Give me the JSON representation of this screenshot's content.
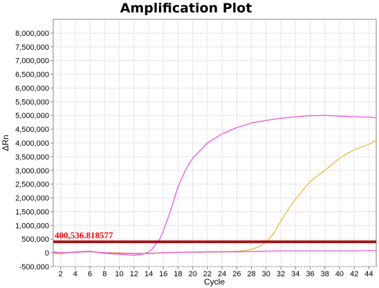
{
  "chart_data": {
    "type": "line",
    "title": "Amplification Plot",
    "xlabel": "Cycle",
    "ylabel": "ΔRn",
    "xlim": [
      1,
      45
    ],
    "ylim": [
      -500000,
      8500000
    ],
    "grid": true,
    "x_ticks": [
      2,
      4,
      6,
      8,
      10,
      12,
      14,
      16,
      18,
      20,
      22,
      24,
      26,
      28,
      30,
      32,
      34,
      36,
      38,
      40,
      42,
      44
    ],
    "y_ticks": [
      -500000,
      0,
      500000,
      1000000,
      1500000,
      2000000,
      2500000,
      3000000,
      3500000,
      4000000,
      4500000,
      5000000,
      5500000,
      6000000,
      6500000,
      7000000,
      7500000,
      8000000
    ],
    "y_tick_labels": [
      "-500,000",
      "0",
      "500,000",
      "1,000,000",
      "1,500,000",
      "2,000,000",
      "2,500,000",
      "3,000,000",
      "3,500,000",
      "4,000,000",
      "4,500,000",
      "5,000,000",
      "5,500,000",
      "6,000,000",
      "6,500,000",
      "7,000,000",
      "7,500,000",
      "8,000,000"
    ],
    "threshold": {
      "value": 400536.818577,
      "label": "400,536.818577",
      "color": "#a01818",
      "label_color": "#ff0000"
    },
    "series": [
      {
        "color": "#e860e0",
        "x": [
          1,
          2,
          4,
          6,
          8,
          10,
          12,
          13,
          14,
          14.5,
          15,
          15.5,
          16,
          17,
          18,
          19,
          20,
          22,
          24,
          26,
          28,
          30,
          32,
          34,
          36,
          38,
          40,
          42,
          44,
          45
        ],
        "y": [
          0,
          -30000,
          40000,
          60000,
          -20000,
          -50000,
          -90000,
          -60000,
          30000,
          150000,
          330000,
          500000,
          800000,
          1550000,
          2400000,
          3000000,
          3450000,
          4000000,
          4330000,
          4560000,
          4730000,
          4820000,
          4900000,
          4950000,
          4990000,
          5000000,
          4980000,
          4950000,
          4940000,
          4920000
        ]
      },
      {
        "color": "#e8c040",
        "x": [
          1,
          2,
          4,
          6,
          8,
          10,
          12,
          14,
          16,
          18,
          20,
          22,
          24,
          26,
          27,
          28,
          29,
          30,
          30.5,
          31,
          32,
          33,
          34,
          35,
          36,
          38,
          40,
          42,
          44,
          45
        ],
        "y": [
          -20000,
          -40000,
          30000,
          40000,
          10000,
          0,
          -20000,
          -20000,
          10000,
          20000,
          20000,
          30000,
          40000,
          60000,
          80000,
          130000,
          220000,
          400000,
          540000,
          700000,
          1150000,
          1580000,
          1950000,
          2280000,
          2600000,
          3000000,
          3450000,
          3750000,
          3950000,
          4100000
        ]
      },
      {
        "color": "#e860e0",
        "x": [
          1,
          2,
          4,
          6,
          8,
          10,
          12,
          14,
          16,
          18,
          20,
          22,
          24,
          26,
          28,
          30,
          32,
          34,
          36,
          38,
          40,
          42,
          44,
          45
        ],
        "y": [
          40000,
          10000,
          20000,
          50000,
          0,
          -20000,
          -30000,
          -30000,
          0,
          20000,
          30000,
          40000,
          40000,
          40000,
          50000,
          60000,
          70000,
          70000,
          70000,
          70000,
          70000,
          70000,
          80000,
          80000
        ]
      }
    ]
  }
}
